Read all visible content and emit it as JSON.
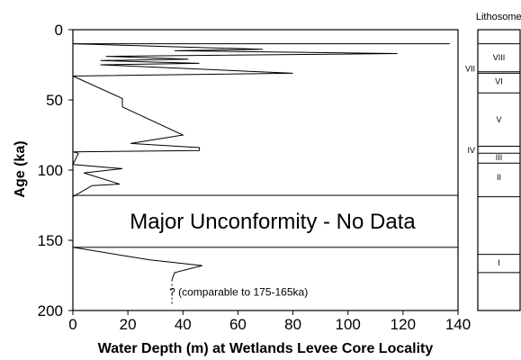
{
  "chart_data": {
    "type": "line",
    "xlabel": "Water Depth (m) at Wetlands Levee Core Locality",
    "ylabel": "Age (ka)",
    "xlim": [
      0,
      140
    ],
    "ylim": [
      0,
      200
    ],
    "y_inverted": true,
    "x_ticks": [
      "0",
      "20",
      "40",
      "60",
      "80",
      "100",
      "120",
      "140"
    ],
    "y_ticks": [
      "0",
      "50",
      "100",
      "150",
      "200"
    ],
    "grid": false,
    "series": [
      {
        "values": [
          {
            "x": 0,
            "y": 10
          },
          {
            "x": 137,
            "y": 10
          }
        ]
      },
      {
        "values": [
          {
            "x": 0,
            "y": 10
          },
          {
            "x": 69,
            "y": 14
          },
          {
            "x": 37,
            "y": 15
          },
          {
            "x": 118,
            "y": 17
          },
          {
            "x": 12,
            "y": 19
          },
          {
            "x": 42,
            "y": 21
          },
          {
            "x": 10,
            "y": 22
          },
          {
            "x": 46,
            "y": 24
          },
          {
            "x": 10,
            "y": 25
          },
          {
            "x": 80,
            "y": 31
          },
          {
            "x": 0,
            "y": 33
          },
          {
            "x": 18,
            "y": 49
          },
          {
            "x": 18,
            "y": 55
          },
          {
            "x": 40,
            "y": 75
          },
          {
            "x": 21,
            "y": 81
          },
          {
            "x": 46,
            "y": 84
          },
          {
            "x": 46,
            "y": 86
          },
          {
            "x": 0,
            "y": 87
          },
          {
            "x": 2,
            "y": 88
          },
          {
            "x": 0,
            "y": 96
          },
          {
            "x": 18,
            "y": 99
          },
          {
            "x": 4,
            "y": 102
          },
          {
            "x": 17,
            "y": 110
          },
          {
            "x": 7,
            "y": 111
          },
          {
            "x": 0,
            "y": 119
          }
        ]
      },
      {
        "values": [
          {
            "x": 0,
            "y": 155
          },
          {
            "x": 28,
            "y": 164
          },
          {
            "x": 47,
            "y": 168
          },
          {
            "x": 37,
            "y": 173
          },
          {
            "x": 36,
            "y": 178
          }
        ]
      }
    ],
    "dashed_extension": [
      {
        "x": 36,
        "y": 178
      },
      {
        "x": 36,
        "y": 197
      }
    ],
    "unconformity": {
      "y_from": 118,
      "y_to": 155,
      "label": "Major Unconformity - No Data"
    },
    "annotation": {
      "text": "? (comparable to 175-165ka)",
      "x": 37,
      "y": 187
    },
    "lithosomes": {
      "title": "Lithosomes",
      "boundaries": [
        10,
        30,
        31,
        45,
        83,
        88,
        95,
        119,
        160,
        173
      ],
      "units": [
        {
          "label": "VIII",
          "y": 20,
          "outside": false
        },
        {
          "label": "VII",
          "y": 28,
          "outside": true
        },
        {
          "label": "VI",
          "y": 37,
          "outside": false
        },
        {
          "label": "V",
          "y": 64,
          "outside": false
        },
        {
          "label": "IV",
          "y": 86,
          "outside": true
        },
        {
          "label": "III",
          "y": 91,
          "outside": false
        },
        {
          "label": "II",
          "y": 105,
          "outside": false
        },
        {
          "label": "I",
          "y": 166,
          "outside": false
        }
      ]
    }
  }
}
